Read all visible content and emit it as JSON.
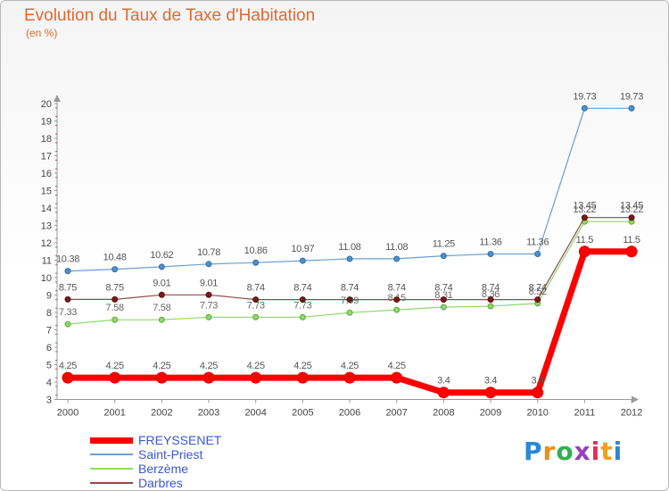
{
  "title": "Evolution du Taux de Taxe d'Habitation",
  "unit": "(en %)",
  "logo": {
    "letters": [
      "P",
      "r",
      "o",
      "x",
      "i",
      "t",
      "i"
    ],
    "colors": [
      "#2a86d8",
      "#e89020",
      "#2eb052",
      "#9a3fb8",
      "#e03060",
      "#f0a020",
      "#2a86d8"
    ]
  },
  "chart_data": {
    "type": "line",
    "title": "Evolution du Taux de Taxe d'Habitation",
    "ylabel": "(en %)",
    "xlabel": "",
    "ylim": [
      3,
      20
    ],
    "y_ticks": [
      3,
      4,
      5,
      6,
      7,
      8,
      9,
      10,
      11,
      12,
      13,
      14,
      15,
      16,
      17,
      18,
      19,
      20
    ],
    "x": [
      "2000",
      "2001",
      "2002",
      "2003",
      "2004",
      "2005",
      "2006",
      "2007",
      "2008",
      "2009",
      "2010",
      "2011",
      "2012"
    ],
    "grid": false,
    "legend_position": "bottom-left",
    "series": [
      {
        "name": "FREYSSENET",
        "color": "#ff0000",
        "labels": [
          "4.25",
          "4.25",
          "4.25",
          "4.25",
          "4.25",
          "4.25",
          "4.25",
          "4.25",
          "3.4",
          "3.4",
          "3.4",
          "11.5",
          "11.5"
        ],
        "values": [
          4.25,
          4.25,
          4.25,
          4.25,
          4.25,
          4.25,
          4.25,
          4.25,
          3.4,
          3.4,
          3.4,
          11.5,
          11.5
        ]
      },
      {
        "name": "Saint-Priest",
        "color": "#6a9fd0",
        "labels": [
          "10.38",
          "10.48",
          "10.62",
          "10.78",
          "10.86",
          "10.97",
          "11.08",
          "11.08",
          "11.25",
          "11.36",
          "11.36",
          "19.73",
          "19.73"
        ],
        "values": [
          10.38,
          10.48,
          10.62,
          10.78,
          10.86,
          10.97,
          11.08,
          11.08,
          11.25,
          11.36,
          11.36,
          19.73,
          19.73
        ]
      },
      {
        "name": "Berzème",
        "color": "#8fd86a",
        "labels": [
          "7.33",
          "7.58",
          "7.58",
          "7.73",
          "7.73",
          "7.73",
          "7.99",
          "8.15",
          "8.31",
          "8.36",
          "8.52",
          "13.22",
          "13.22"
        ],
        "values": [
          7.33,
          7.58,
          7.58,
          7.73,
          7.73,
          7.73,
          7.99,
          8.15,
          8.31,
          8.36,
          8.52,
          13.22,
          13.22
        ]
      },
      {
        "name": "Darbres",
        "color": "#8c4a4a",
        "labels": [
          "8.75",
          "8.75",
          "9.01",
          "9.01",
          "8.74",
          "8.74",
          "8.74",
          "8.74",
          "8.74",
          "8.74",
          "8.74",
          "13.45",
          "13.45"
        ],
        "values": [
          8.75,
          8.75,
          9.01,
          9.01,
          8.74,
          8.74,
          8.74,
          8.74,
          8.74,
          8.74,
          8.74,
          13.45,
          13.45
        ]
      }
    ]
  }
}
